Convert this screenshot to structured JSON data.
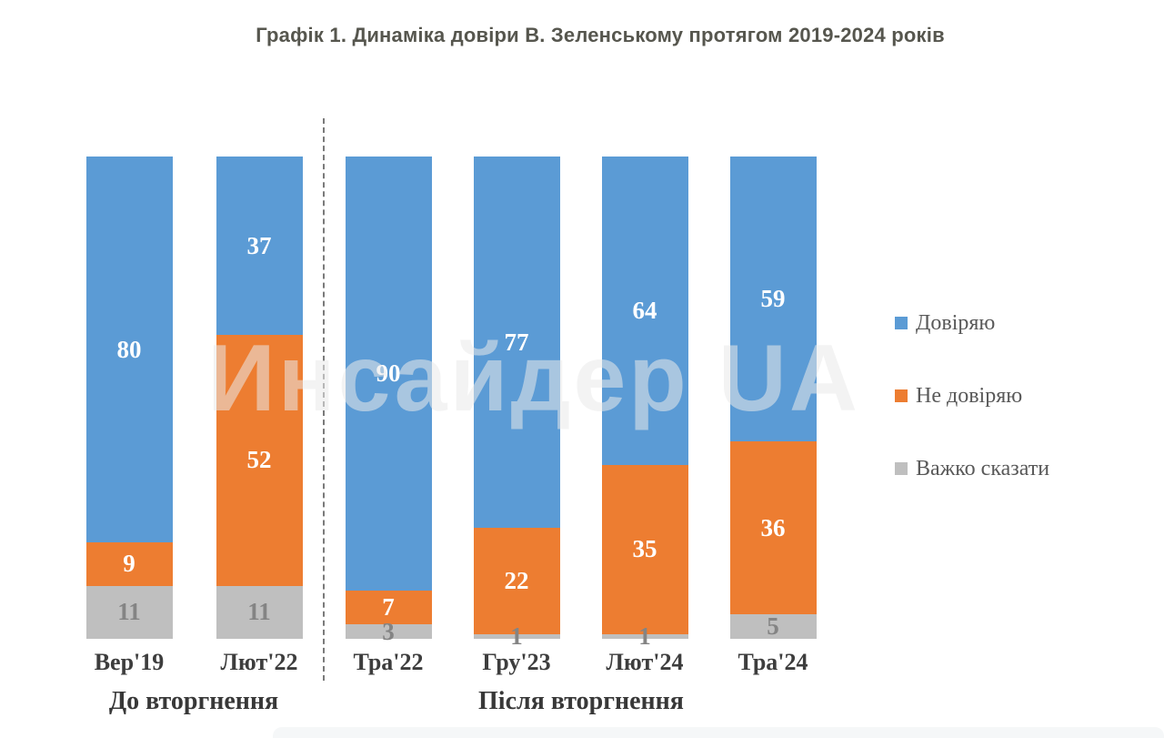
{
  "chart_data": {
    "type": "bar",
    "variant": "stacked-100-percent-vertical",
    "title": "Графік 1. Динаміка довіри В. Зеленському протягом 2019-2024 років",
    "categories": [
      "Вер'19",
      "Лют'22",
      "Тра'22",
      "Гру'23",
      "Лют'24",
      "Тра'24"
    ],
    "series": [
      {
        "name": "Довіряю",
        "color": "#5B9BD5",
        "values": [
          80,
          37,
          90,
          77,
          64,
          59
        ]
      },
      {
        "name": "Не довіряю",
        "color": "#ED7D31",
        "values": [
          9,
          52,
          7,
          22,
          35,
          36
        ]
      },
      {
        "name": "Важко сказати",
        "color": "#BFBFBF",
        "values": [
          11,
          11,
          3,
          1,
          1,
          5
        ]
      }
    ],
    "groups": [
      {
        "label": "До вторгнення",
        "category_span": [
          0,
          1
        ]
      },
      {
        "label": "Після вторгнення",
        "category_span": [
          2,
          5
        ]
      }
    ],
    "separator_between_categories": [
      "Лют'22",
      "Тра'22"
    ],
    "legend_position": "right",
    "ylim": [
      0,
      100
    ],
    "grid": false,
    "data_labels": true
  },
  "watermark": {
    "text": "Инсайдер UA"
  },
  "colors": {
    "value_label_light": "#ffffff",
    "value_label_gray": "#848484",
    "title_text": "#56564e",
    "axis_label_text": "#3d3d3d",
    "legend_text": "#595959",
    "separator_line": "#7a7a7a"
  }
}
